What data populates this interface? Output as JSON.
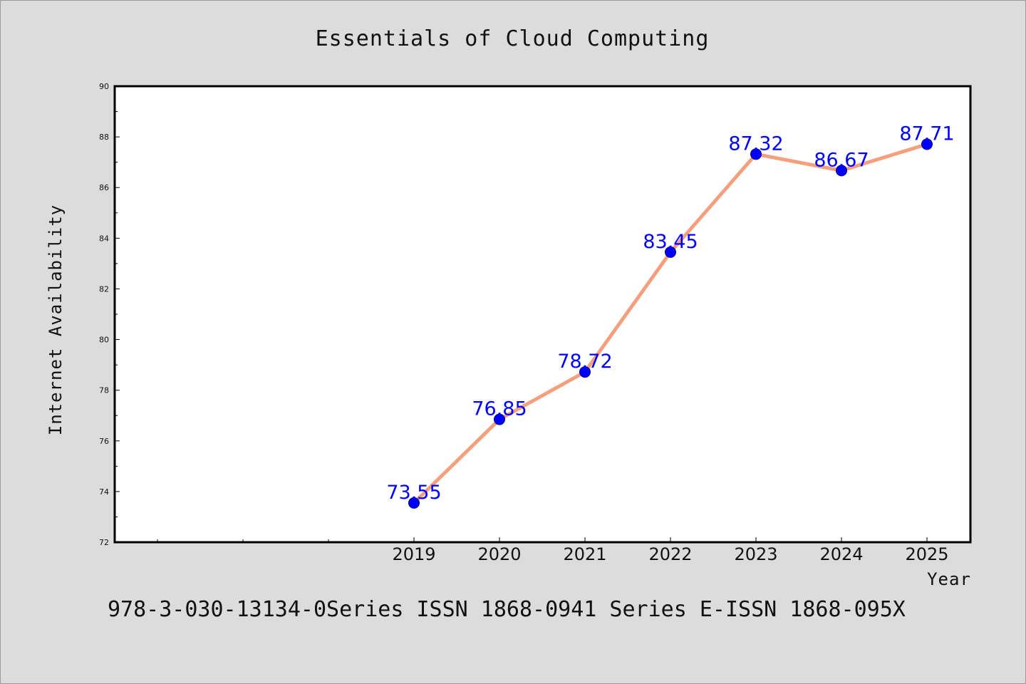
{
  "chart_data": {
    "type": "line",
    "title": "Essentials of Cloud Computing",
    "xlabel": "Year",
    "ylabel": "Internet Availability",
    "categories": [
      "2019",
      "2020",
      "2021",
      "2022",
      "2023",
      "2024",
      "2025"
    ],
    "values": [
      73.55,
      76.85,
      78.72,
      83.45,
      87.32,
      86.67,
      87.71
    ],
    "data_labels": [
      "73.55",
      "76.85",
      "78.72",
      "83.45",
      "87.32",
      "86.67",
      "87.71"
    ],
    "ylim": [
      72,
      90
    ],
    "yticks": [
      "72",
      "74",
      "76",
      "78",
      "80",
      "82",
      "84",
      "86",
      "88",
      "90"
    ],
    "grid": false,
    "colors": {
      "line": "#f4a07e",
      "marker": "#0000ff",
      "marker_edge": "#00008b",
      "data_label": "#0000ff",
      "plot_background": "#ffffff",
      "page_background": "#dcdcdc"
    }
  },
  "footer": {
    "text": "978-3-030-13134-0Series ISSN 1868-0941 Series E-ISSN 1868-095X"
  }
}
